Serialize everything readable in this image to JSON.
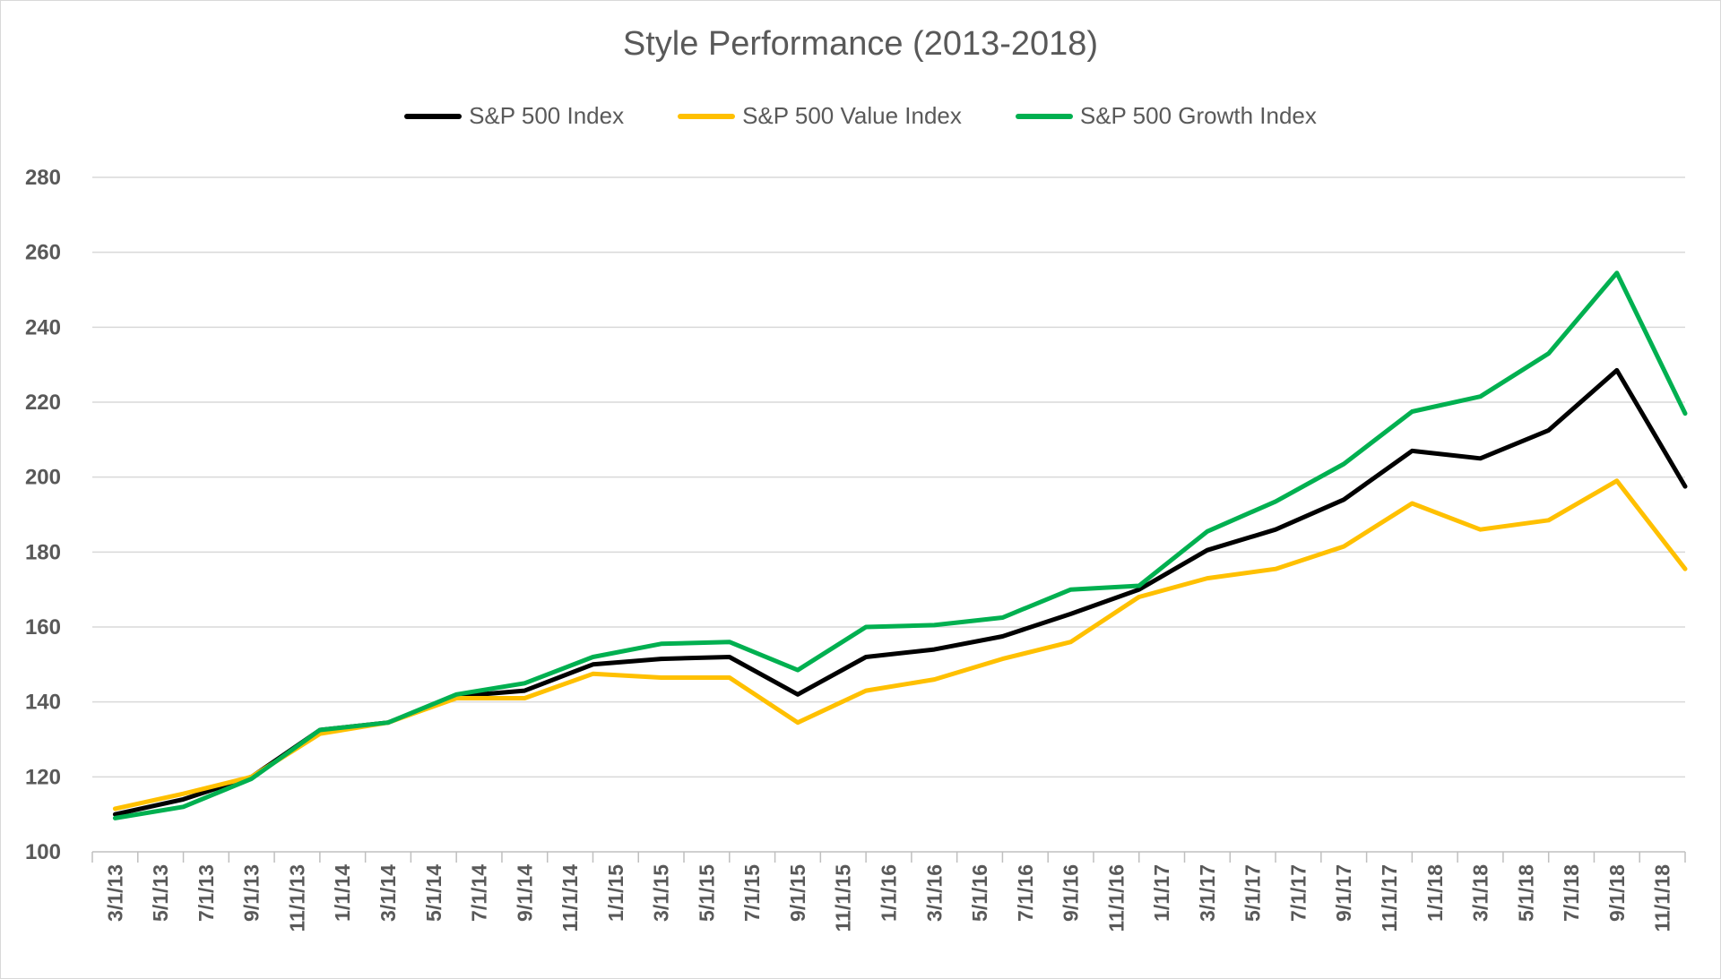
{
  "chart_data": {
    "type": "line",
    "title": "Style Performance (2013-2018)",
    "xlabel": "",
    "ylabel": "",
    "ylim": [
      100,
      280
    ],
    "yticks": [
      100,
      120,
      140,
      160,
      180,
      200,
      220,
      240,
      260,
      280
    ],
    "grid": true,
    "legend_position": "top",
    "x_tick_labels": [
      "3/1/13",
      "5/1/13",
      "7/1/13",
      "9/1/13",
      "11/1/13",
      "1/1/14",
      "3/1/14",
      "5/1/14",
      "7/1/14",
      "9/1/14",
      "11/1/14",
      "1/1/15",
      "3/1/15",
      "5/1/15",
      "7/1/15",
      "9/1/15",
      "11/1/15",
      "1/1/16",
      "3/1/16",
      "5/1/16",
      "7/1/16",
      "9/1/16",
      "11/1/16",
      "1/1/17",
      "3/1/17",
      "5/1/17",
      "7/1/17",
      "9/1/17",
      "11/1/17",
      "1/1/18",
      "3/1/18",
      "5/1/18",
      "7/1/18",
      "9/1/18",
      "11/1/18"
    ],
    "x": [
      "3/1/13",
      "6/1/13",
      "9/1/13",
      "12/1/13",
      "3/1/14",
      "6/1/14",
      "9/1/14",
      "12/1/14",
      "3/1/15",
      "6/1/15",
      "9/1/15",
      "12/1/15",
      "3/1/16",
      "6/1/16",
      "9/1/16",
      "12/1/16",
      "3/1/17",
      "6/1/17",
      "9/1/17",
      "12/1/17",
      "3/1/18",
      "6/1/18",
      "9/1/18",
      "12/1/18"
    ],
    "series": [
      {
        "name": "S&P 500 Index",
        "color": "#000000",
        "values": [
          110,
          114,
          120,
          132.5,
          134.5,
          141.5,
          143,
          150,
          151.5,
          152,
          142,
          152,
          154,
          157.5,
          163.5,
          170,
          180.5,
          186,
          194,
          207,
          205,
          212.5,
          228.5,
          197.5
        ]
      },
      {
        "name": "S&P 500 Value Index",
        "color": "#ffc000",
        "values": [
          111.5,
          115.5,
          120,
          131.5,
          134.5,
          141,
          141,
          147.5,
          146.5,
          146.5,
          134.5,
          143,
          146,
          151.5,
          156,
          168,
          173,
          175.5,
          181.5,
          193,
          186,
          188.5,
          199,
          175.5
        ]
      },
      {
        "name": "S&P 500 Growth Index",
        "color": "#00b050",
        "values": [
          109,
          112,
          119.5,
          132.5,
          134.5,
          142,
          145,
          152,
          155.5,
          156,
          148.5,
          160,
          160.5,
          162.5,
          170,
          171,
          185.5,
          193.5,
          203.5,
          217.5,
          221.5,
          233,
          254.5,
          217
        ]
      }
    ]
  }
}
